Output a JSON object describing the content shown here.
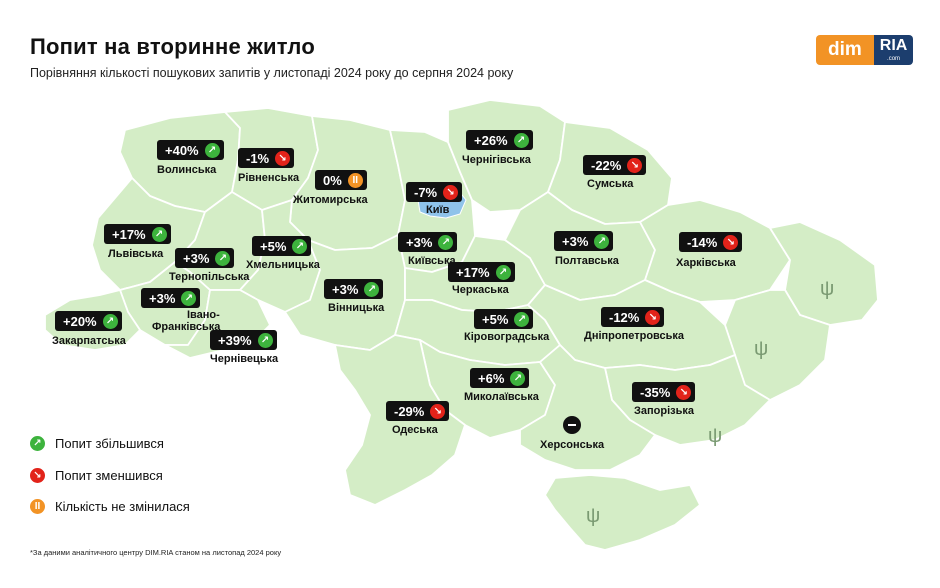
{
  "header": {
    "title": "Попит на вторинне житло",
    "subtitle": "Порівняння кількості пошукових запитів у листопаді 2024 року до серпня 2024 року"
  },
  "logo": {
    "dim": "dim",
    "ria": "RIA",
    "ria_sub": ".com"
  },
  "colors": {
    "map_fill": "#d4edc6",
    "map_border": "#ffffff",
    "up": "#3db33d",
    "down": "#e2231a",
    "same": "#f29325",
    "kyiv": "#8fc3ea"
  },
  "icons": {
    "up": "arrow-up-right-icon",
    "down": "arrow-down-right-icon",
    "same": "pause-icon",
    "none": "minus-icon"
  },
  "regions": [
    {
      "name": "Волинська",
      "value": "+40%",
      "trend": "up"
    },
    {
      "name": "Рівненська",
      "value": "-1%",
      "trend": "down"
    },
    {
      "name": "Житомирська",
      "value": "0%",
      "trend": "same"
    },
    {
      "name": "Чернігівська",
      "value": "+26%",
      "trend": "up"
    },
    {
      "name": "Сумська",
      "value": "-22%",
      "trend": "down"
    },
    {
      "name": "Київська",
      "value": "+3%",
      "trend": "up"
    },
    {
      "name": "Київ",
      "value": "-7%",
      "trend": "down"
    },
    {
      "name": "Львівська",
      "value": "+17%",
      "trend": "up"
    },
    {
      "name": "Тернопільська",
      "value": "+3%",
      "trend": "up"
    },
    {
      "name": "Хмельницька",
      "value": "+5%",
      "trend": "up"
    },
    {
      "name": "Полтавська",
      "value": "+3%",
      "trend": "up"
    },
    {
      "name": "Харківська",
      "value": "-14%",
      "trend": "down"
    },
    {
      "name": "Черкаська",
      "value": "+17%",
      "trend": "up"
    },
    {
      "name": "Вінницька",
      "value": "+3%",
      "trend": "up"
    },
    {
      "name": "Івано-Франківська",
      "name_line1": "Івано-",
      "name_line2": "Франківська",
      "value": "+3%",
      "trend": "up"
    },
    {
      "name": "Закарпатська",
      "value": "+20%",
      "trend": "up"
    },
    {
      "name": "Чернівецька",
      "value": "+39%",
      "trend": "up"
    },
    {
      "name": "Кіровоградська",
      "value": "+5%",
      "trend": "up"
    },
    {
      "name": "Дніпропетровська",
      "value": "-12%",
      "trend": "down"
    },
    {
      "name": "Миколаївська",
      "value": "+6%",
      "trend": "up"
    },
    {
      "name": "Одеська",
      "value": "-29%",
      "trend": "down"
    },
    {
      "name": "Запорізька",
      "value": "-35%",
      "trend": "down"
    },
    {
      "name": "Херсонська",
      "value": "",
      "trend": "none"
    }
  ],
  "legend": [
    {
      "label": "Попит збільшився",
      "trend": "up"
    },
    {
      "label": "Попит зменшився",
      "trend": "down"
    },
    {
      "label": "Кількість не змінилася",
      "trend": "same"
    }
  ],
  "footnote": "*За даними аналітичного центру DIM.RIA станом на листопад 2024 року"
}
